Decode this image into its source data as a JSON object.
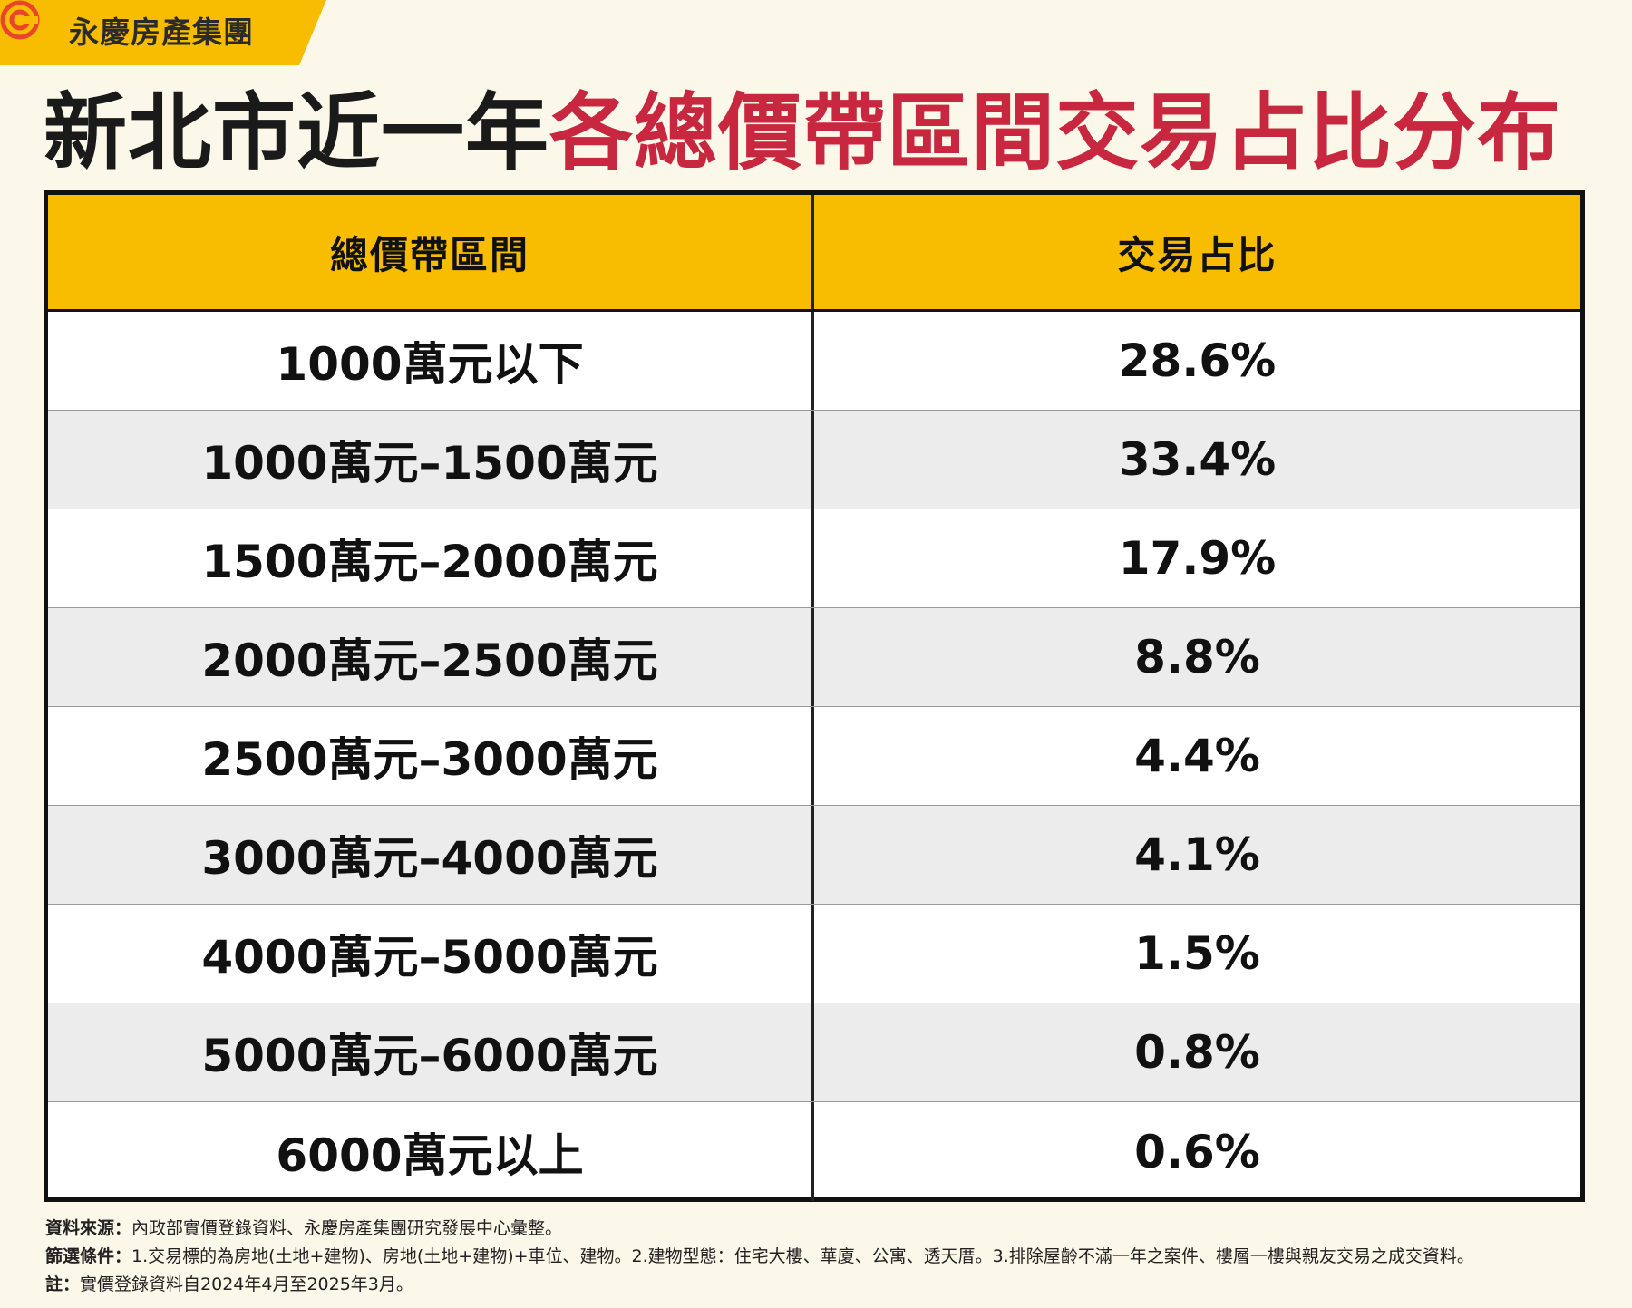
{
  "brand": {
    "name": "永慶房產集團",
    "logo_icon": "yungching-logo-icon",
    "accent": "#f8bd00",
    "logo_color": "#e8462a"
  },
  "title": {
    "part1": "新北市近一年",
    "part2": "各總價帶區間交易占比分布",
    "part1_color": "#1a1a1a",
    "part2_color": "#c8283f"
  },
  "table": {
    "headers": [
      "總價帶區間",
      "交易占比"
    ],
    "rows": [
      {
        "range": "1000萬元以下",
        "share": "28.6%"
      },
      {
        "range": "1000萬元–1500萬元",
        "share": "33.4%"
      },
      {
        "range": "1500萬元–2000萬元",
        "share": "17.9%"
      },
      {
        "range": "2000萬元–2500萬元",
        "share": "8.8%"
      },
      {
        "range": "2500萬元–3000萬元",
        "share": "4.4%"
      },
      {
        "range": "3000萬元–4000萬元",
        "share": "4.1%"
      },
      {
        "range": "4000萬元–5000萬元",
        "share": "1.5%"
      },
      {
        "range": "5000萬元–6000萬元",
        "share": "0.8%"
      },
      {
        "range": "6000萬元以上",
        "share": "0.6%"
      }
    ]
  },
  "footnotes": [
    {
      "label": "資料來源：",
      "text": "內政部實價登錄資料、永慶房產集團研究發展中心彙整。"
    },
    {
      "label": "篩選條件：",
      "text": "1.交易標的為房地(土地+建物)、房地(土地+建物)+車位、建物。2.建物型態：住宅大樓、華廈、公寓、透天厝。3.排除屋齡不滿一年之案件、樓層一樓與親友交易之成交資料。"
    },
    {
      "label": "註：",
      "text": "實價登錄資料自2024年4月至2025年3月。"
    }
  ]
}
